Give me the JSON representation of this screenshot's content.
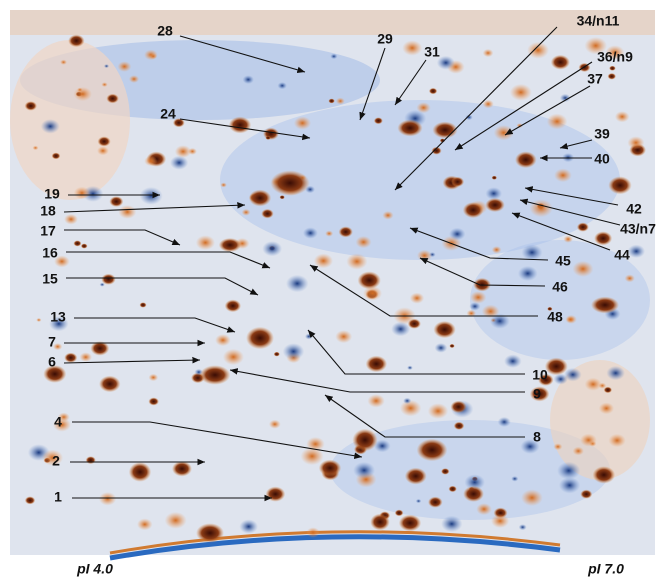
{
  "labels": [
    "28",
    "29",
    "31",
    "34/n11",
    "36/n9",
    "37",
    "24",
    "39",
    "40",
    "19",
    "18",
    "42",
    "17",
    "43/n7",
    "16",
    "44",
    "45",
    "15",
    "46",
    "48",
    "13",
    "7",
    "10",
    "6",
    "9",
    "4",
    "8",
    "2",
    "1"
  ],
  "axis": {
    "left": "pI 4.0",
    "right": "pI 7.0"
  }
}
